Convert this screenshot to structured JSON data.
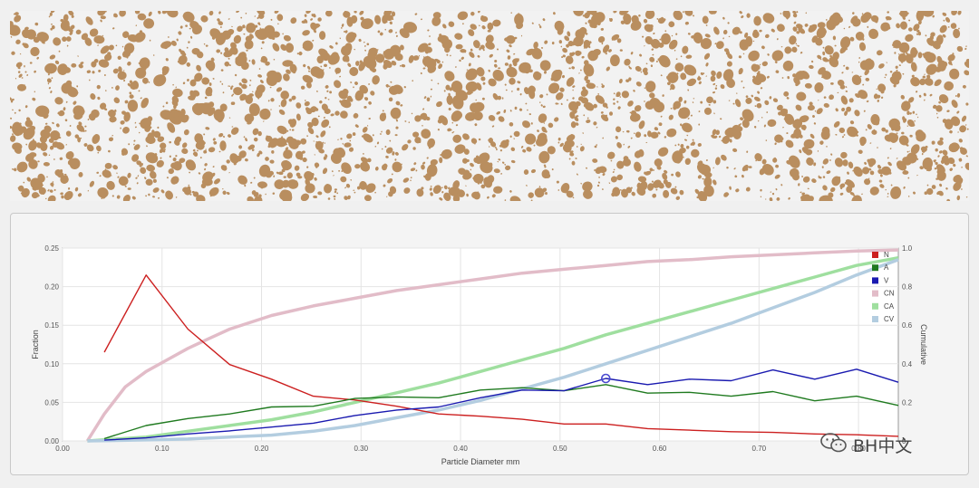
{
  "particle_image": {
    "particle_color": "#b98e5f",
    "background_color": "#f2f2f2"
  },
  "watermark": {
    "text": "BH中文",
    "icon": "wechat-icon"
  },
  "chart_data": {
    "type": "line",
    "xlabel": "Particle Diameter mm",
    "ylabel": "Fraction",
    "y2label": "Cumulative",
    "xlim": [
      0.0,
      0.84
    ],
    "ylim": [
      0.0,
      0.25
    ],
    "y2lim": [
      0.0,
      1.0
    ],
    "x_ticks": [
      "0.00",
      "0.10",
      "0.20",
      "0.30",
      "0.40",
      "0.50",
      "0.60",
      "0.70",
      "0.80"
    ],
    "y_ticks": [
      "0.00",
      "0.05",
      "0.10",
      "0.15",
      "0.20",
      "0.25"
    ],
    "y2_ticks": [
      "0",
      "0.2",
      "0.4",
      "0.6",
      "0.8",
      "1.0"
    ],
    "grid": true,
    "legend_position": "top-right",
    "highlighted_point": {
      "series": "V",
      "x": 0.546,
      "y": 0.081
    },
    "series": [
      {
        "name": "N",
        "axis": "left",
        "color": "#cc1f1f",
        "x": [
          0.042,
          0.084,
          0.126,
          0.168,
          0.21,
          0.252,
          0.294,
          0.336,
          0.378,
          0.42,
          0.462,
          0.504,
          0.546,
          0.588,
          0.63,
          0.672,
          0.714,
          0.756,
          0.798,
          0.84
        ],
        "y": [
          0.115,
          0.215,
          0.145,
          0.099,
          0.08,
          0.058,
          0.053,
          0.045,
          0.035,
          0.032,
          0.028,
          0.022,
          0.022,
          0.016,
          0.014,
          0.012,
          0.011,
          0.009,
          0.008,
          0.006
        ]
      },
      {
        "name": "A",
        "axis": "left",
        "color": "#1f7a1f",
        "x": [
          0.042,
          0.084,
          0.126,
          0.168,
          0.21,
          0.252,
          0.294,
          0.336,
          0.378,
          0.42,
          0.462,
          0.504,
          0.546,
          0.588,
          0.63,
          0.672,
          0.714,
          0.756,
          0.798,
          0.84
        ],
        "y": [
          0.003,
          0.02,
          0.029,
          0.035,
          0.044,
          0.045,
          0.055,
          0.057,
          0.056,
          0.066,
          0.069,
          0.065,
          0.073,
          0.062,
          0.063,
          0.058,
          0.064,
          0.052,
          0.058,
          0.046
        ]
      },
      {
        "name": "V",
        "axis": "left",
        "color": "#1a1ab0",
        "x": [
          0.042,
          0.084,
          0.126,
          0.168,
          0.21,
          0.252,
          0.294,
          0.336,
          0.378,
          0.42,
          0.462,
          0.504,
          0.546,
          0.588,
          0.63,
          0.672,
          0.714,
          0.756,
          0.798,
          0.84
        ],
        "y": [
          0.001,
          0.004,
          0.009,
          0.013,
          0.018,
          0.023,
          0.033,
          0.04,
          0.044,
          0.056,
          0.066,
          0.065,
          0.081,
          0.073,
          0.08,
          0.078,
          0.092,
          0.08,
          0.093,
          0.076
        ]
      },
      {
        "name": "CN",
        "axis": "right",
        "color": "#e2bcc8",
        "x": [
          0.025,
          0.042,
          0.063,
          0.084,
          0.105,
          0.126,
          0.147,
          0.168,
          0.21,
          0.252,
          0.294,
          0.336,
          0.378,
          0.42,
          0.462,
          0.504,
          0.546,
          0.588,
          0.63,
          0.672,
          0.714,
          0.756,
          0.798,
          0.84
        ],
        "y": [
          0.0,
          0.14,
          0.28,
          0.36,
          0.42,
          0.48,
          0.53,
          0.58,
          0.65,
          0.7,
          0.74,
          0.78,
          0.81,
          0.84,
          0.87,
          0.89,
          0.91,
          0.93,
          0.94,
          0.955,
          0.965,
          0.975,
          0.985,
          0.99
        ]
      },
      {
        "name": "CA",
        "axis": "right",
        "color": "#9fdf9f",
        "x": [
          0.025,
          0.084,
          0.126,
          0.168,
          0.21,
          0.252,
          0.294,
          0.336,
          0.378,
          0.42,
          0.462,
          0.504,
          0.546,
          0.588,
          0.63,
          0.672,
          0.714,
          0.756,
          0.798,
          0.84
        ],
        "y": [
          0.0,
          0.02,
          0.05,
          0.08,
          0.11,
          0.15,
          0.2,
          0.25,
          0.3,
          0.36,
          0.42,
          0.48,
          0.55,
          0.61,
          0.67,
          0.73,
          0.79,
          0.85,
          0.91,
          0.95
        ]
      },
      {
        "name": "CV",
        "axis": "right",
        "color": "#b3cde0",
        "x": [
          0.025,
          0.084,
          0.126,
          0.168,
          0.21,
          0.252,
          0.294,
          0.336,
          0.378,
          0.42,
          0.462,
          0.504,
          0.546,
          0.588,
          0.63,
          0.672,
          0.714,
          0.756,
          0.798,
          0.84
        ],
        "y": [
          0.0,
          0.005,
          0.01,
          0.02,
          0.03,
          0.05,
          0.08,
          0.12,
          0.16,
          0.21,
          0.27,
          0.33,
          0.4,
          0.47,
          0.54,
          0.61,
          0.69,
          0.77,
          0.86,
          0.94
        ]
      }
    ]
  }
}
